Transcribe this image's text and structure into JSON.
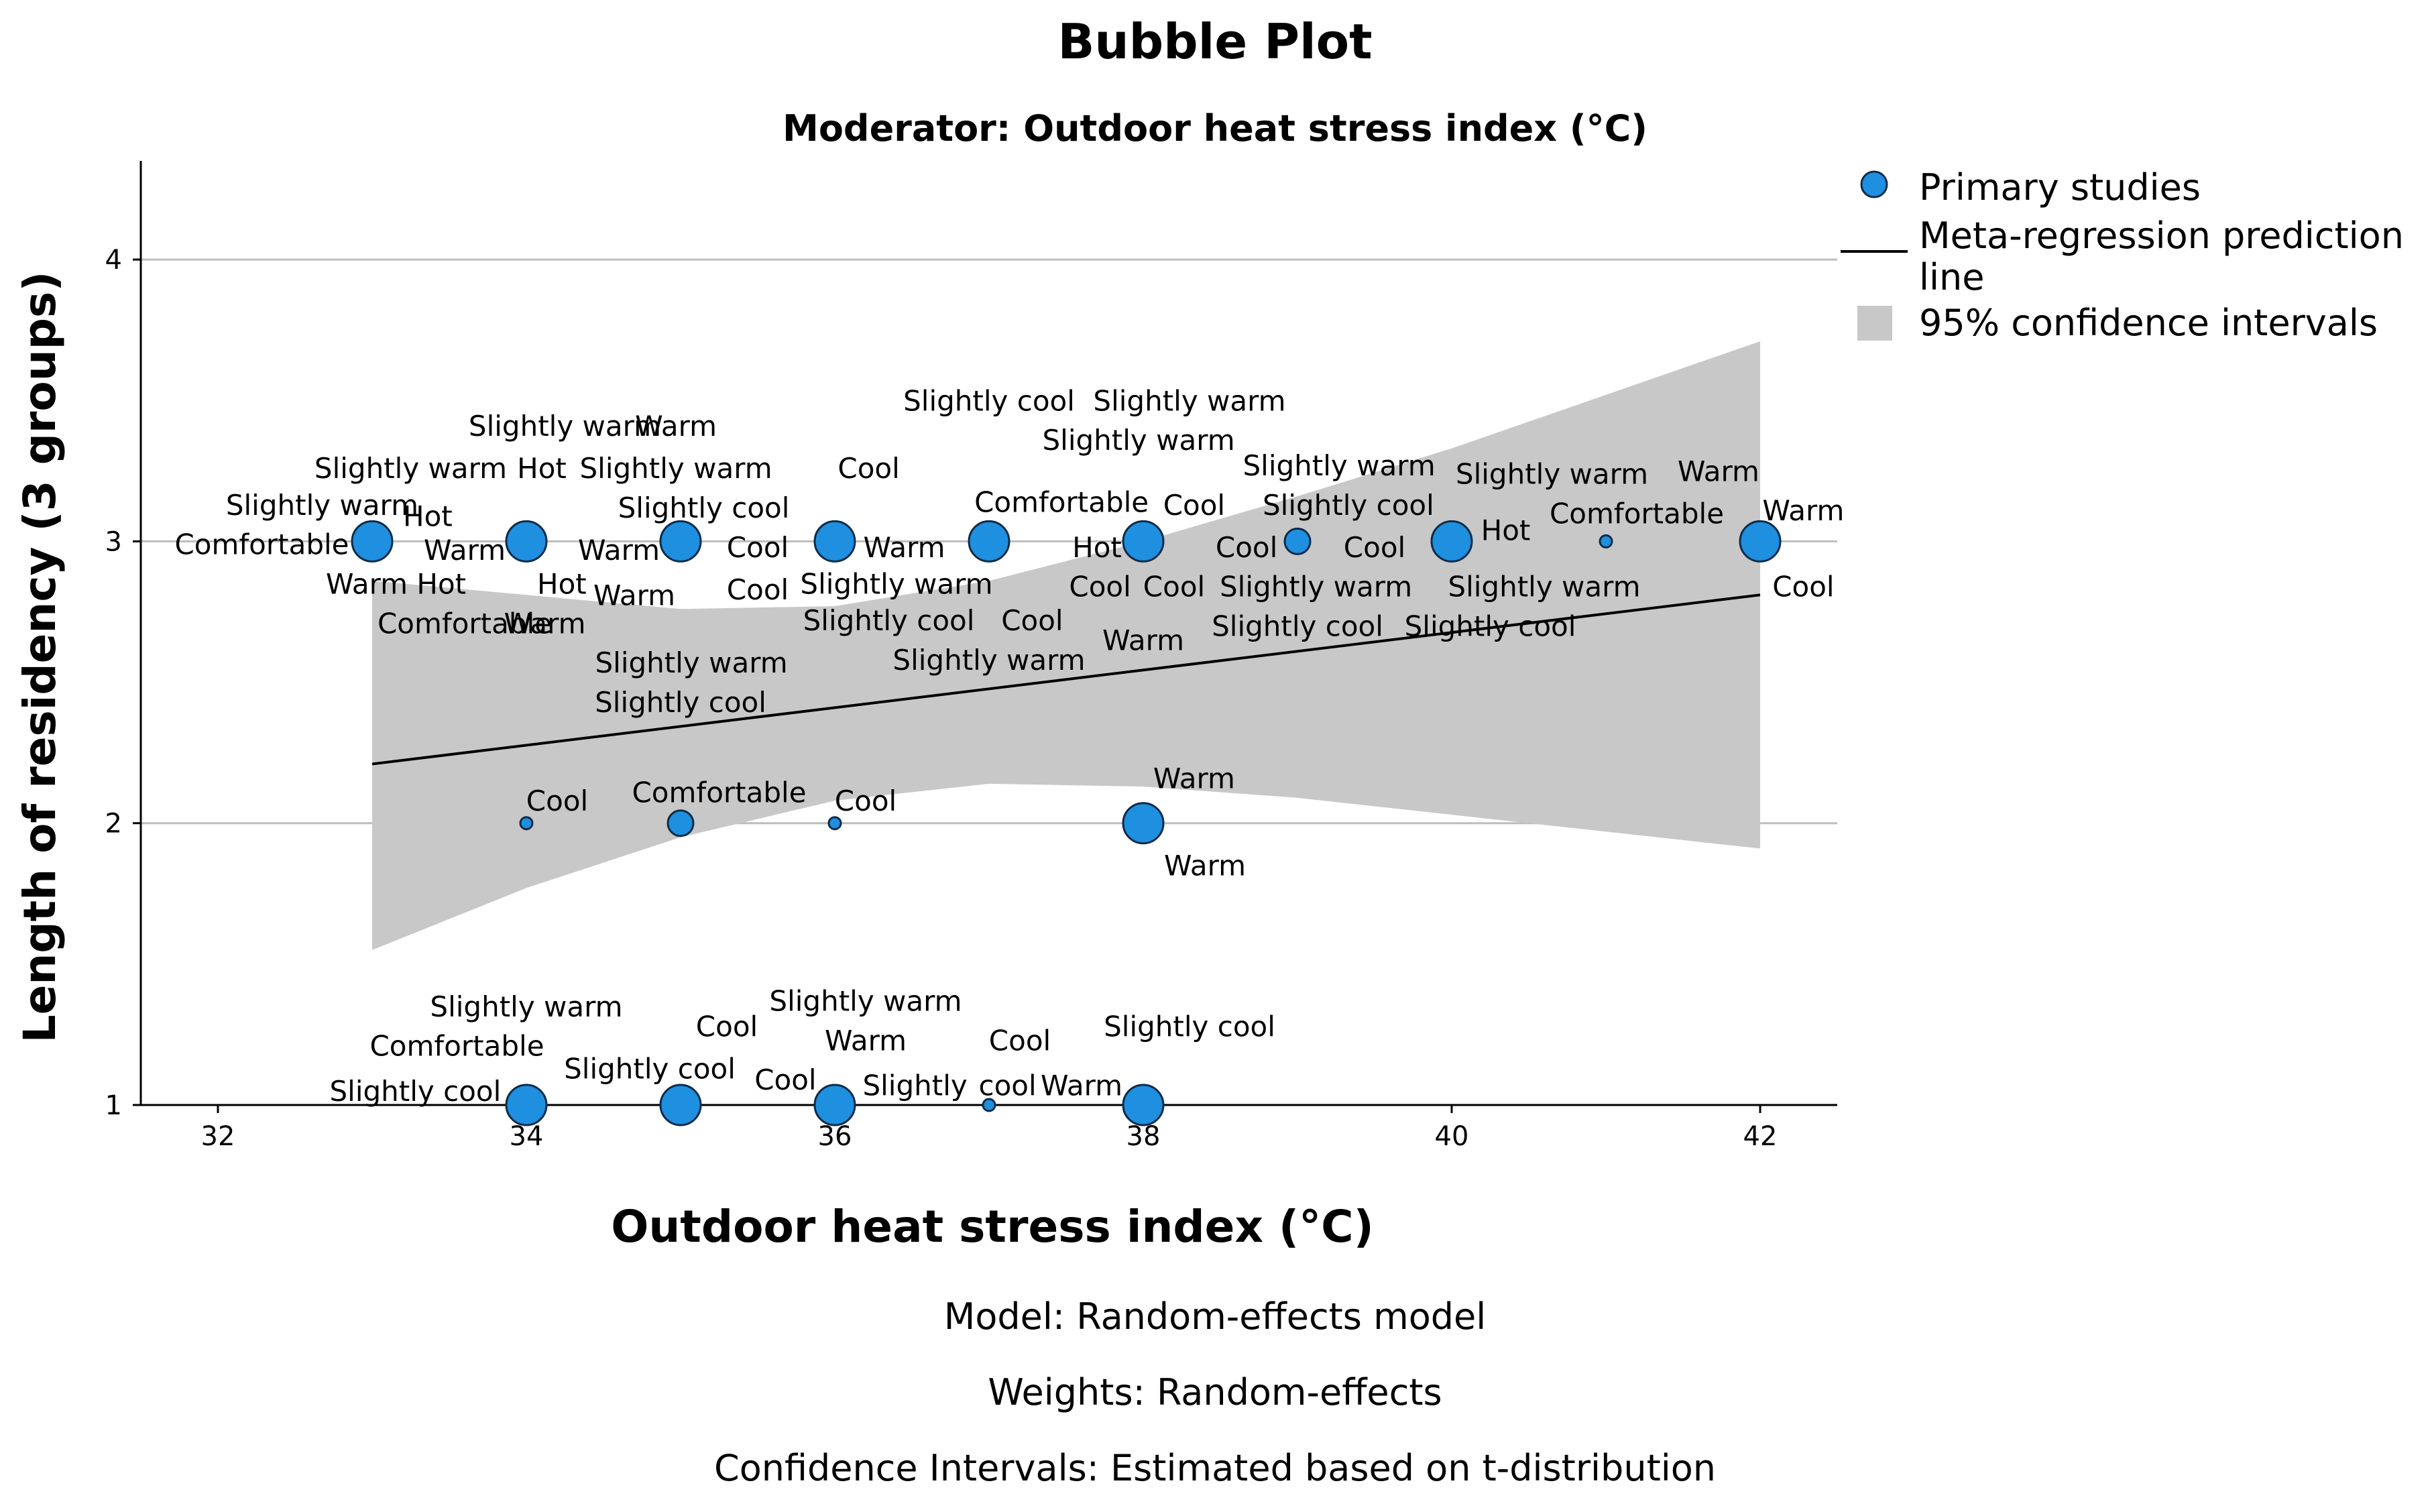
{
  "colors": {
    "bubble": "#1f8fe0",
    "bubble_stroke": "#0d2c47",
    "ci_band": "#c8c8c8",
    "line": "#000000",
    "grid": "#bdbdbd"
  },
  "chart_data": {
    "type": "scatter",
    "title": "Bubble Plot",
    "subtitle": "Moderator: Outdoor heat stress index (°C)",
    "xlabel": "Outdoor heat stress index (°C)",
    "ylabel": "Length of residency (3 groups)",
    "xlim": [
      31.5,
      42.5
    ],
    "ylim": [
      1,
      4.35
    ],
    "xticks": [
      32,
      34,
      36,
      38,
      40,
      42
    ],
    "yticks": [
      1,
      2,
      3,
      4
    ],
    "grid": true,
    "legend_position": "top-right",
    "legend": [
      {
        "key": "points",
        "label": "Primary studies"
      },
      {
        "key": "line",
        "label": "Meta-regression prediction line"
      },
      {
        "key": "band",
        "label": "95% confidence intervals"
      }
    ],
    "regression_line": {
      "x": [
        33,
        42
      ],
      "y": [
        2.21,
        2.81
      ]
    },
    "confidence_band": {
      "x": [
        33,
        34,
        35,
        36,
        37,
        38,
        39,
        40,
        41,
        42
      ],
      "upper": [
        2.86,
        2.81,
        2.76,
        2.77,
        2.86,
        3.0,
        3.16,
        3.33,
        3.52,
        3.71
      ],
      "lower": [
        1.55,
        1.77,
        1.95,
        2.08,
        2.14,
        2.13,
        2.09,
        2.03,
        1.97,
        1.91
      ]
    },
    "points": [
      {
        "x": 33,
        "y": 3,
        "size": "large"
      },
      {
        "x": 34,
        "y": 3,
        "size": "large"
      },
      {
        "x": 35,
        "y": 3,
        "size": "large"
      },
      {
        "x": 36,
        "y": 3,
        "size": "large"
      },
      {
        "x": 37,
        "y": 3,
        "size": "large"
      },
      {
        "x": 38,
        "y": 3,
        "size": "large"
      },
      {
        "x": 39,
        "y": 3,
        "size": "medium"
      },
      {
        "x": 40,
        "y": 3,
        "size": "large"
      },
      {
        "x": 41,
        "y": 3,
        "size": "small"
      },
      {
        "x": 42,
        "y": 3,
        "size": "large"
      },
      {
        "x": 34,
        "y": 2,
        "size": "small"
      },
      {
        "x": 35,
        "y": 2,
        "size": "medium"
      },
      {
        "x": 36,
        "y": 2,
        "size": "small"
      },
      {
        "x": 38,
        "y": 2,
        "size": "large"
      },
      {
        "x": 34,
        "y": 1,
        "size": "large"
      },
      {
        "x": 35,
        "y": 1,
        "size": "large"
      },
      {
        "x": 36,
        "y": 1,
        "size": "large"
      },
      {
        "x": 37,
        "y": 1,
        "size": "small"
      },
      {
        "x": 38,
        "y": 1,
        "size": "large"
      }
    ],
    "annotations": [
      {
        "text": "Slightly warm",
        "x": 33.3,
        "y": 3.13,
        "anchor": "end"
      },
      {
        "text": "Hot",
        "x": 33.2,
        "y": 3.09,
        "anchor": "start"
      },
      {
        "text": "Comfortable",
        "x": 32.85,
        "y": 2.99,
        "anchor": "end"
      },
      {
        "text": "Warm Hot",
        "x": 32.7,
        "y": 2.85,
        "anchor": "start"
      },
      {
        "text": "Comfortable",
        "x": 33.6,
        "y": 2.71,
        "anchor": "middle"
      },
      {
        "text": "Slightly warm",
        "x": 34.25,
        "y": 3.41,
        "anchor": "middle"
      },
      {
        "text": "Warm",
        "x": 34.97,
        "y": 3.41,
        "anchor": "middle"
      },
      {
        "text": "Slightly warm",
        "x": 33.25,
        "y": 3.26,
        "anchor": "middle"
      },
      {
        "text": "Hot",
        "x": 34.1,
        "y": 3.26,
        "anchor": "middle"
      },
      {
        "text": "Slightly warm",
        "x": 34.97,
        "y": 3.26,
        "anchor": "middle"
      },
      {
        "text": "Slightly cool",
        "x": 35.15,
        "y": 3.12,
        "anchor": "middle"
      },
      {
        "text": "Warm",
        "x": 33.6,
        "y": 2.97,
        "anchor": "middle"
      },
      {
        "text": "Warm",
        "x": 34.6,
        "y": 2.97,
        "anchor": "middle"
      },
      {
        "text": "Cool",
        "x": 35.5,
        "y": 2.98,
        "anchor": "middle"
      },
      {
        "text": "Hot",
        "x": 34.23,
        "y": 2.85,
        "anchor": "middle"
      },
      {
        "text": "Warm",
        "x": 34.7,
        "y": 2.81,
        "anchor": "middle"
      },
      {
        "text": "Warm",
        "x": 34.12,
        "y": 2.71,
        "anchor": "middle"
      },
      {
        "text": "Cool",
        "x": 35.5,
        "y": 2.83,
        "anchor": "middle"
      },
      {
        "text": "Slightly warm",
        "x": 35.07,
        "y": 2.57,
        "anchor": "middle"
      },
      {
        "text": "Slightly cool",
        "x": 35.0,
        "y": 2.43,
        "anchor": "middle"
      },
      {
        "text": "Cool",
        "x": 36.22,
        "y": 3.26,
        "anchor": "middle"
      },
      {
        "text": "Warm",
        "x": 36.45,
        "y": 2.98,
        "anchor": "middle"
      },
      {
        "text": "Slightly warm",
        "x": 36.4,
        "y": 2.85,
        "anchor": "middle"
      },
      {
        "text": "Slightly cool",
        "x": 36.35,
        "y": 2.72,
        "anchor": "middle"
      },
      {
        "text": "Cool",
        "x": 37.28,
        "y": 2.72,
        "anchor": "middle"
      },
      {
        "text": "Slightly warm",
        "x": 37.0,
        "y": 2.58,
        "anchor": "middle"
      },
      {
        "text": "Slightly cool",
        "x": 37.0,
        "y": 3.5,
        "anchor": "middle"
      },
      {
        "text": "Slightly warm",
        "x": 38.3,
        "y": 3.5,
        "anchor": "middle"
      },
      {
        "text": "Slightly warm",
        "x": 37.97,
        "y": 3.36,
        "anchor": "middle"
      },
      {
        "text": "Comfortable",
        "x": 37.47,
        "y": 3.14,
        "anchor": "middle"
      },
      {
        "text": "Cool",
        "x": 38.33,
        "y": 3.13,
        "anchor": "middle"
      },
      {
        "text": "Hot",
        "x": 37.7,
        "y": 2.98,
        "anchor": "middle"
      },
      {
        "text": "Cool",
        "x": 37.72,
        "y": 2.84,
        "anchor": "middle"
      },
      {
        "text": "Cool",
        "x": 38.2,
        "y": 2.84,
        "anchor": "middle"
      },
      {
        "text": "Warm",
        "x": 38.0,
        "y": 2.65,
        "anchor": "middle"
      },
      {
        "text": "Slightly warm",
        "x": 39.27,
        "y": 3.27,
        "anchor": "middle"
      },
      {
        "text": "Slightly cool",
        "x": 39.33,
        "y": 3.13,
        "anchor": "middle"
      },
      {
        "text": "Cool",
        "x": 38.67,
        "y": 2.98,
        "anchor": "middle"
      },
      {
        "text": "Cool",
        "x": 39.5,
        "y": 2.98,
        "anchor": "middle"
      },
      {
        "text": "Slightly warm",
        "x": 39.12,
        "y": 2.84,
        "anchor": "middle"
      },
      {
        "text": "Slightly cool",
        "x": 39.0,
        "y": 2.7,
        "anchor": "middle"
      },
      {
        "text": "Slightly warm",
        "x": 40.65,
        "y": 3.24,
        "anchor": "middle"
      },
      {
        "text": "Hot",
        "x": 40.35,
        "y": 3.04,
        "anchor": "middle"
      },
      {
        "text": "Slightly warm",
        "x": 40.6,
        "y": 2.84,
        "anchor": "middle"
      },
      {
        "text": "Slightly cool",
        "x": 40.25,
        "y": 2.7,
        "anchor": "middle"
      },
      {
        "text": "Comfortable",
        "x": 41.2,
        "y": 3.1,
        "anchor": "middle"
      },
      {
        "text": "Warm",
        "x": 41.73,
        "y": 3.25,
        "anchor": "middle"
      },
      {
        "text": "Warm",
        "x": 42.28,
        "y": 3.11,
        "anchor": "middle"
      },
      {
        "text": "Cool",
        "x": 42.28,
        "y": 2.84,
        "anchor": "middle"
      },
      {
        "text": "Cool",
        "x": 34.2,
        "y": 2.08,
        "anchor": "middle"
      },
      {
        "text": "Comfortable",
        "x": 35.25,
        "y": 2.11,
        "anchor": "middle"
      },
      {
        "text": "Cool",
        "x": 36.2,
        "y": 2.08,
        "anchor": "middle"
      },
      {
        "text": "Warm",
        "x": 38.33,
        "y": 2.16,
        "anchor": "middle"
      },
      {
        "text": "Warm",
        "x": 38.4,
        "y": 1.85,
        "anchor": "middle"
      },
      {
        "text": "Slightly warm",
        "x": 34.0,
        "y": 1.35,
        "anchor": "middle"
      },
      {
        "text": "Comfortable",
        "x": 33.55,
        "y": 1.21,
        "anchor": "middle"
      },
      {
        "text": "Slightly cool",
        "x": 33.28,
        "y": 1.05,
        "anchor": "middle"
      },
      {
        "text": "Cool",
        "x": 35.3,
        "y": 1.28,
        "anchor": "middle"
      },
      {
        "text": "Slightly cool",
        "x": 34.8,
        "y": 1.13,
        "anchor": "middle"
      },
      {
        "text": "Cool",
        "x": 35.68,
        "y": 1.09,
        "anchor": "middle"
      },
      {
        "text": "Slightly warm",
        "x": 36.2,
        "y": 1.37,
        "anchor": "middle"
      },
      {
        "text": "Warm",
        "x": 36.2,
        "y": 1.23,
        "anchor": "middle"
      },
      {
        "text": "Slightly",
        "x": 36.52,
        "y": 1.07,
        "anchor": "middle"
      },
      {
        "text": "cool",
        "x": 37.12,
        "y": 1.07,
        "anchor": "middle"
      },
      {
        "text": "Cool",
        "x": 37.2,
        "y": 1.23,
        "anchor": "middle"
      },
      {
        "text": "Warm",
        "x": 37.6,
        "y": 1.07,
        "anchor": "middle"
      },
      {
        "text": "Slightly cool",
        "x": 38.3,
        "y": 1.28,
        "anchor": "middle"
      }
    ]
  },
  "footer": {
    "model": "Model: Random-effects model",
    "weights": "Weights: Random-effects",
    "ci": "Confidence Intervals: Estimated based on t-distribution"
  }
}
